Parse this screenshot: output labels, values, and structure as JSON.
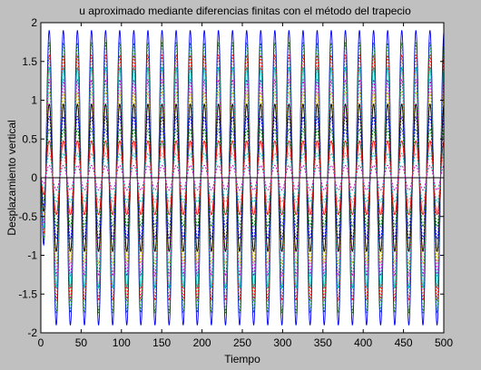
{
  "chart_data": {
    "type": "line",
    "title": "u aproximado mediante diferencias finitas con el método del trapecio",
    "xlabel": "Tiempo",
    "ylabel": "Desplazamiento vertical",
    "xlim": [
      0,
      500
    ],
    "ylim": [
      -2,
      2
    ],
    "xticks": [
      0,
      50,
      100,
      150,
      200,
      250,
      300,
      350,
      400,
      450,
      500
    ],
    "yticks": [
      -2,
      -1.5,
      -1,
      -0.5,
      0,
      0.5,
      1,
      1.5,
      2
    ],
    "grid": false,
    "legend": "none",
    "signal": {
      "oscillation_period": 17.5,
      "peak_amplitude": 1.9,
      "curve_count": 12
    },
    "series_colors": [
      "#0000ff",
      "#008000",
      "#ff0000",
      "#00bfbf",
      "#bf00bf",
      "#bfbf00",
      "#000000",
      "#0000ff",
      "#008000",
      "#ff0000",
      "#00bfbf",
      "#bf00bf"
    ],
    "colors": {
      "figure_background": "#c0c0c0",
      "axes_background": "#ffffff",
      "axes_color": "#000000"
    }
  }
}
